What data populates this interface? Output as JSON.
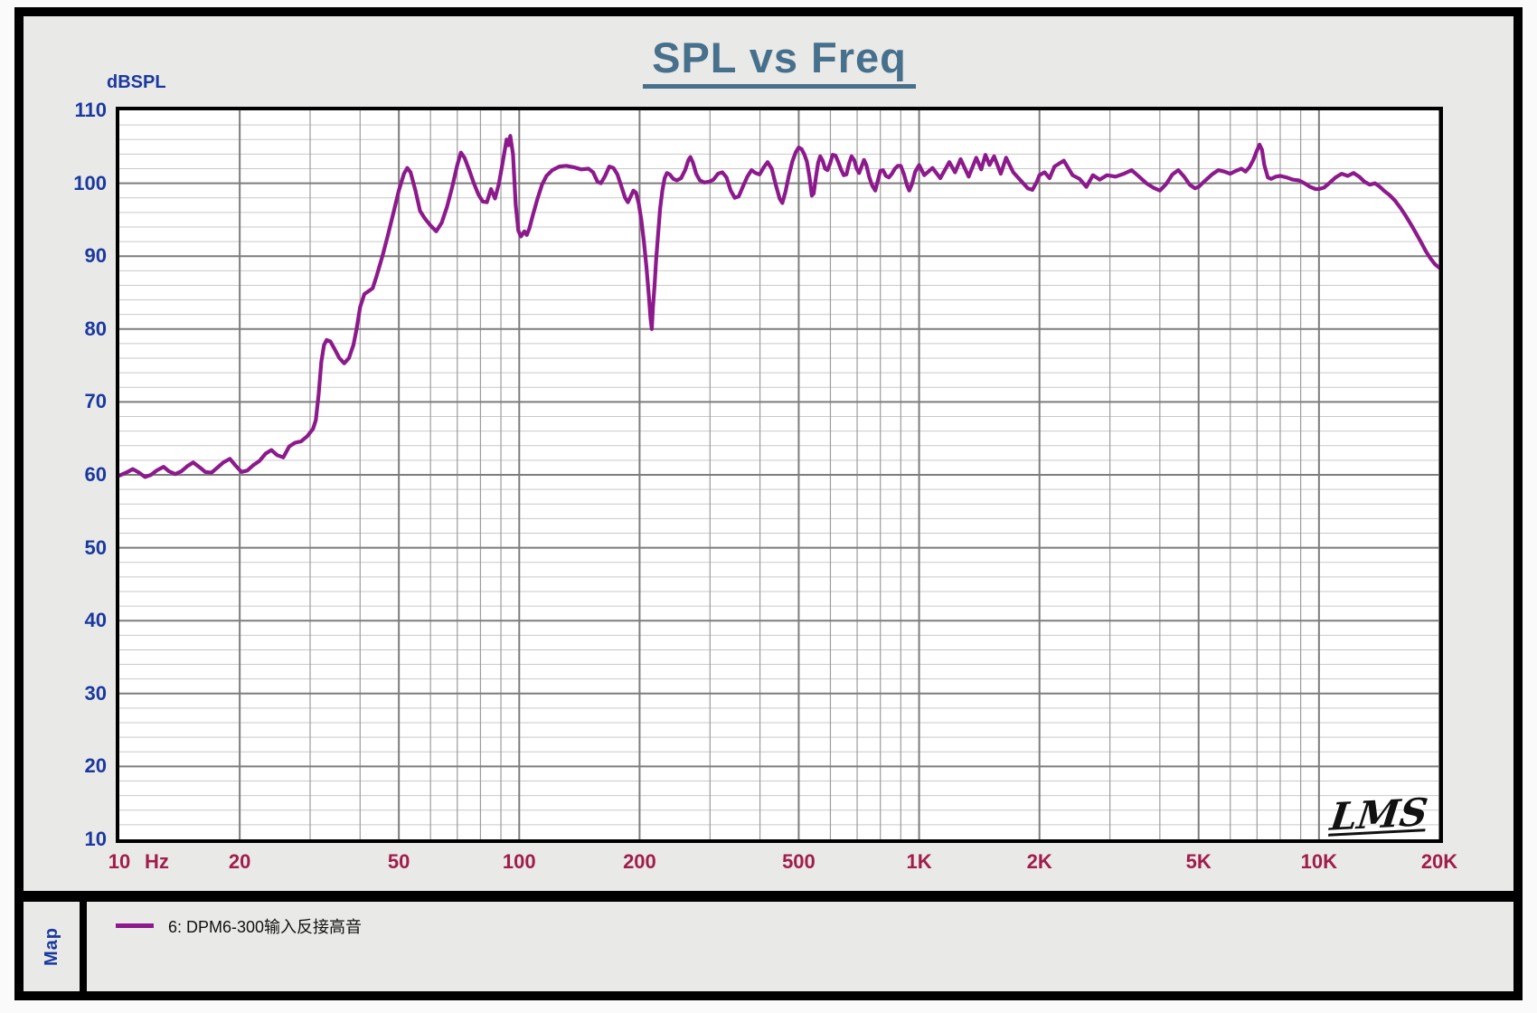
{
  "title": "SPL vs Freq",
  "watermark": "LMS",
  "y_axis": {
    "unit_label": "dBSPL",
    "min": 10,
    "max": 110,
    "major_step": 10,
    "minor_step": 2,
    "tick_labels": [
      "110",
      "100",
      "90",
      "80",
      "70",
      "60",
      "50",
      "40",
      "30",
      "20",
      "10"
    ]
  },
  "x_axis": {
    "unit_label": "Hz",
    "scale": "log",
    "min": 10,
    "max": 20000,
    "tick_freqs": [
      10,
      20,
      50,
      100,
      200,
      500,
      1000,
      2000,
      5000,
      10000,
      20000
    ],
    "tick_labels": [
      "10",
      "20",
      "50",
      "100",
      "200",
      "500",
      "1K",
      "2K",
      "5K",
      "10K",
      "20K"
    ]
  },
  "legend": {
    "map_label": "Map",
    "series_label": "6: DPM6-300输入反接高音"
  },
  "colors": {
    "curve": "#8c1a8c",
    "title": "#46708c",
    "y_labels": "#1a39a0",
    "x_labels": "#a01d4c",
    "grid_major": "#7d7d7d",
    "grid_minor_v": "#9c9c9c",
    "grid_minor_h": "#c9c9c9",
    "panel_bg": "#e9e9e7",
    "plot_bg": "#ffffff"
  },
  "chart_data": {
    "type": "line",
    "title": "SPL vs Freq",
    "xlabel": "Hz",
    "ylabel": "dBSPL",
    "x_scale": "log",
    "xlim": [
      10,
      20000
    ],
    "ylim": [
      10,
      110
    ],
    "grid": true,
    "legend_position": "bottom",
    "series": [
      {
        "name": "6: DPM6-300输入反接高音",
        "color": "#8c1a8c",
        "points": [
          [
            10,
            59.9
          ],
          [
            10.4,
            60.3
          ],
          [
            10.8,
            60.8
          ],
          [
            11.2,
            60.3
          ],
          [
            11.6,
            59.7
          ],
          [
            12,
            60
          ],
          [
            12.4,
            60.6
          ],
          [
            12.9,
            61.1
          ],
          [
            13.3,
            60.5
          ],
          [
            13.8,
            60.1
          ],
          [
            14.3,
            60.5
          ],
          [
            14.8,
            61.2
          ],
          [
            15.3,
            61.7
          ],
          [
            15.9,
            61
          ],
          [
            16.4,
            60.4
          ],
          [
            17,
            60.3
          ],
          [
            17.6,
            61
          ],
          [
            18.2,
            61.7
          ],
          [
            18.9,
            62.2
          ],
          [
            19.5,
            61.3
          ],
          [
            20.2,
            60.4
          ],
          [
            20.9,
            60.6
          ],
          [
            21.6,
            61.3
          ],
          [
            22.4,
            61.9
          ],
          [
            23.2,
            62.9
          ],
          [
            24,
            63.4
          ],
          [
            24.8,
            62.7
          ],
          [
            25.7,
            62.4
          ],
          [
            26.6,
            63.9
          ],
          [
            27.5,
            64.4
          ],
          [
            28.5,
            64.6
          ],
          [
            29.5,
            65.3
          ],
          [
            30.5,
            66.3
          ],
          [
            31,
            67.5
          ],
          [
            31.5,
            71
          ],
          [
            32,
            75.5
          ],
          [
            32.5,
            77.8
          ],
          [
            33,
            78.5
          ],
          [
            33.7,
            78.3
          ],
          [
            34.5,
            77.3
          ],
          [
            35.5,
            76
          ],
          [
            36.5,
            75.3
          ],
          [
            37.5,
            76
          ],
          [
            38.5,
            77.8
          ],
          [
            39.2,
            80
          ],
          [
            40,
            83
          ],
          [
            41,
            84.8
          ],
          [
            42,
            85.2
          ],
          [
            43,
            85.6
          ],
          [
            44,
            87.3
          ],
          [
            45.5,
            90
          ],
          [
            47,
            93
          ],
          [
            48.5,
            96
          ],
          [
            50,
            99
          ],
          [
            51.5,
            101.3
          ],
          [
            52.5,
            102.1
          ],
          [
            53.5,
            101.5
          ],
          [
            55,
            99
          ],
          [
            56.5,
            96.2
          ],
          [
            58,
            95.2
          ],
          [
            60,
            94.2
          ],
          [
            62,
            93.4
          ],
          [
            64,
            94.6
          ],
          [
            66,
            96.8
          ],
          [
            68,
            99.5
          ],
          [
            70,
            102.5
          ],
          [
            71.5,
            104.2
          ],
          [
            73,
            103.5
          ],
          [
            75,
            101.8
          ],
          [
            77,
            100
          ],
          [
            79,
            98.5
          ],
          [
            81,
            97.5
          ],
          [
            83,
            97.4
          ],
          [
            85,
            99.2
          ],
          [
            87,
            97.9
          ],
          [
            89,
            100
          ],
          [
            91,
            103
          ],
          [
            93,
            106
          ],
          [
            94,
            105.2
          ],
          [
            95,
            106.5
          ],
          [
            96.5,
            104
          ],
          [
            98,
            97
          ],
          [
            99.5,
            93.5
          ],
          [
            101,
            92.7
          ],
          [
            103,
            93.4
          ],
          [
            104.5,
            92.9
          ],
          [
            106,
            93.8
          ],
          [
            108,
            95.5
          ],
          [
            111,
            97.8
          ],
          [
            114,
            99.8
          ],
          [
            117,
            101
          ],
          [
            121,
            101.8
          ],
          [
            126,
            102.3
          ],
          [
            131,
            102.4
          ],
          [
            137,
            102.2
          ],
          [
            143,
            101.9
          ],
          [
            149,
            102
          ],
          [
            153,
            101.5
          ],
          [
            157,
            100.2
          ],
          [
            160,
            100
          ],
          [
            164,
            101
          ],
          [
            168,
            102.3
          ],
          [
            172,
            102.1
          ],
          [
            176,
            101.2
          ],
          [
            180,
            99.6
          ],
          [
            184,
            98
          ],
          [
            187,
            97.4
          ],
          [
            190,
            98.2
          ],
          [
            193,
            99
          ],
          [
            196,
            98.7
          ],
          [
            199,
            97.2
          ],
          [
            202,
            95
          ],
          [
            205,
            92
          ],
          [
            208,
            88.5
          ],
          [
            211,
            84.5
          ],
          [
            213,
            81.5
          ],
          [
            214.5,
            80
          ],
          [
            216,
            83
          ],
          [
            218,
            86
          ],
          [
            220,
            89.5
          ],
          [
            222.5,
            93
          ],
          [
            225,
            96.5
          ],
          [
            228,
            99
          ],
          [
            231,
            100.7
          ],
          [
            234,
            101.4
          ],
          [
            238,
            101.2
          ],
          [
            243,
            100.6
          ],
          [
            248,
            100.4
          ],
          [
            254,
            100.7
          ],
          [
            260,
            101.8
          ],
          [
            265,
            103.2
          ],
          [
            268,
            103.6
          ],
          [
            272,
            102.8
          ],
          [
            277,
            101.3
          ],
          [
            283,
            100.4
          ],
          [
            290,
            100.1
          ],
          [
            298,
            100.2
          ],
          [
            306,
            100.5
          ],
          [
            314,
            101.3
          ],
          [
            322,
            101.5
          ],
          [
            330,
            100.8
          ],
          [
            338,
            99
          ],
          [
            346,
            98
          ],
          [
            354,
            98.2
          ],
          [
            363,
            99.6
          ],
          [
            372,
            100.9
          ],
          [
            381,
            101.8
          ],
          [
            390,
            101.4
          ],
          [
            399,
            101.2
          ],
          [
            409,
            102.2
          ],
          [
            418,
            102.9
          ],
          [
            428,
            102
          ],
          [
            438,
            99.8
          ],
          [
            448,
            97.9
          ],
          [
            455,
            97.3
          ],
          [
            463,
            98.8
          ],
          [
            472,
            101
          ],
          [
            482,
            103
          ],
          [
            492,
            104.3
          ],
          [
            500,
            104.9
          ],
          [
            508,
            104.7
          ],
          [
            516,
            104
          ],
          [
            524,
            103
          ],
          [
            532,
            100.9
          ],
          [
            539,
            98.3
          ],
          [
            545,
            98.6
          ],
          [
            552,
            100.8
          ],
          [
            559,
            102.8
          ],
          [
            566,
            103.7
          ],
          [
            574,
            103.1
          ],
          [
            582,
            102
          ],
          [
            590,
            101.8
          ],
          [
            599,
            102.7
          ],
          [
            608,
            103.9
          ],
          [
            618,
            103.8
          ],
          [
            628,
            102.9
          ],
          [
            638,
            101.9
          ],
          [
            648,
            101.1
          ],
          [
            658,
            101.2
          ],
          [
            668,
            102.7
          ],
          [
            678,
            103.7
          ],
          [
            688,
            103.2
          ],
          [
            698,
            102
          ],
          [
            708,
            101.4
          ],
          [
            718,
            102.3
          ],
          [
            728,
            103.2
          ],
          [
            738,
            102.5
          ],
          [
            750,
            100.9
          ],
          [
            763,
            99.7
          ],
          [
            777,
            99
          ],
          [
            788,
            100.3
          ],
          [
            800,
            101.7
          ],
          [
            812,
            101.8
          ],
          [
            826,
            101
          ],
          [
            840,
            100.8
          ],
          [
            855,
            101.3
          ],
          [
            870,
            102
          ],
          [
            885,
            102.4
          ],
          [
            900,
            102.4
          ],
          [
            917,
            101.2
          ],
          [
            933,
            99.7
          ],
          [
            945,
            99
          ],
          [
            960,
            99.9
          ],
          [
            978,
            101.6
          ],
          [
            1000,
            102.5
          ],
          [
            1030,
            101.1
          ],
          [
            1080,
            102.1
          ],
          [
            1130,
            100.7
          ],
          [
            1190,
            102.9
          ],
          [
            1230,
            101.5
          ],
          [
            1270,
            103.3
          ],
          [
            1330,
            100.9
          ],
          [
            1390,
            103.5
          ],
          [
            1430,
            101.9
          ],
          [
            1465,
            103.9
          ],
          [
            1500,
            102.5
          ],
          [
            1540,
            103.7
          ],
          [
            1600,
            101.3
          ],
          [
            1650,
            103.5
          ],
          [
            1720,
            101.5
          ],
          [
            1800,
            100.3
          ],
          [
            1870,
            99.3
          ],
          [
            1920,
            99.1
          ],
          [
            1970,
            100.2
          ],
          [
            2000,
            101.1
          ],
          [
            2060,
            101.5
          ],
          [
            2120,
            100.7
          ],
          [
            2180,
            102.3
          ],
          [
            2300,
            103.1
          ],
          [
            2420,
            101.1
          ],
          [
            2520,
            100.6
          ],
          [
            2620,
            99.5
          ],
          [
            2720,
            101.1
          ],
          [
            2830,
            100.5
          ],
          [
            2950,
            101.1
          ],
          [
            3100,
            100.9
          ],
          [
            3250,
            101.3
          ],
          [
            3400,
            101.8
          ],
          [
            3550,
            100.9
          ],
          [
            3700,
            100
          ],
          [
            3850,
            99.4
          ],
          [
            4000,
            99
          ],
          [
            4150,
            99.9
          ],
          [
            4300,
            101.2
          ],
          [
            4450,
            101.8
          ],
          [
            4600,
            100.9
          ],
          [
            4750,
            99.8
          ],
          [
            4900,
            99.3
          ],
          [
            5000,
            99.5
          ],
          [
            5200,
            100.4
          ],
          [
            5400,
            101.2
          ],
          [
            5600,
            101.8
          ],
          [
            5800,
            101.6
          ],
          [
            6000,
            101.3
          ],
          [
            6200,
            101.7
          ],
          [
            6400,
            102
          ],
          [
            6550,
            101.6
          ],
          [
            6700,
            102.2
          ],
          [
            6850,
            103.2
          ],
          [
            7000,
            104.5
          ],
          [
            7100,
            105.3
          ],
          [
            7200,
            104.6
          ],
          [
            7300,
            102.5
          ],
          [
            7450,
            100.8
          ],
          [
            7600,
            100.6
          ],
          [
            7800,
            100.9
          ],
          [
            8000,
            101
          ],
          [
            8300,
            100.8
          ],
          [
            8600,
            100.5
          ],
          [
            8900,
            100.4
          ],
          [
            9200,
            100
          ],
          [
            9500,
            99.5
          ],
          [
            9800,
            99.2
          ],
          [
            10000,
            99.2
          ],
          [
            10300,
            99.4
          ],
          [
            10600,
            100
          ],
          [
            11000,
            100.8
          ],
          [
            11400,
            101.3
          ],
          [
            11800,
            101
          ],
          [
            12200,
            101.4
          ],
          [
            12600,
            100.9
          ],
          [
            13000,
            100.2
          ],
          [
            13400,
            99.8
          ],
          [
            13800,
            100
          ],
          [
            14200,
            99.5
          ],
          [
            14600,
            98.9
          ],
          [
            15000,
            98.4
          ],
          [
            15500,
            97.6
          ],
          [
            16000,
            96.6
          ],
          [
            16500,
            95.5
          ],
          [
            17000,
            94.3
          ],
          [
            17500,
            93.1
          ],
          [
            18000,
            91.9
          ],
          [
            18500,
            90.7
          ],
          [
            19000,
            89.7
          ],
          [
            19500,
            88.9
          ],
          [
            20000,
            88.4
          ]
        ]
      }
    ]
  }
}
